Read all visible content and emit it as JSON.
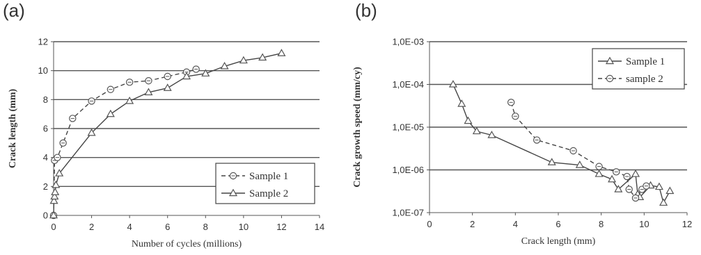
{
  "panels": {
    "a_label": "(a)",
    "b_label": "(b)"
  },
  "chart_data": [
    {
      "type": "line",
      "xlabel": "Number of cycles (millions)",
      "ylabel": "Crack length (mm)",
      "xlim": [
        0,
        14
      ],
      "ylim": [
        0,
        12
      ],
      "xticks": [
        "0",
        "2",
        "4",
        "6",
        "8",
        "10",
        "12",
        "14"
      ],
      "yticks": [
        "0",
        "2",
        "4",
        "6",
        "8",
        "10",
        "12"
      ],
      "xtick_values": [
        0,
        2,
        4,
        6,
        8,
        10,
        12,
        14
      ],
      "ytick_values": [
        0,
        2,
        4,
        6,
        8,
        10,
        12
      ],
      "grid": "horizontal",
      "legend_position": "bottom-right",
      "series": [
        {
          "name": "Sample 1",
          "marker": "circle",
          "line_style": "dashed",
          "x": [
            0,
            0.05,
            0.2,
            0.5,
            1,
            2,
            3,
            4,
            5,
            6,
            7,
            7.5
          ],
          "y": [
            0,
            3.8,
            4.0,
            5.0,
            6.7,
            7.9,
            8.7,
            9.2,
            9.3,
            9.6,
            9.9,
            10.1
          ]
        },
        {
          "name": "Sample 2",
          "marker": "triangle",
          "line_style": "solid",
          "x": [
            0,
            0.02,
            0.05,
            0.08,
            0.12,
            0.3,
            2,
            3,
            4,
            5,
            6,
            7,
            8,
            9,
            10,
            11,
            12
          ],
          "y": [
            0,
            1.0,
            1.3,
            1.6,
            2.1,
            2.9,
            5.7,
            7.0,
            7.9,
            8.5,
            8.8,
            9.6,
            9.8,
            10.3,
            10.7,
            10.9,
            11.2
          ]
        }
      ]
    },
    {
      "type": "line",
      "xlabel": "Crack length (mm)",
      "ylabel": "Crack growth speed (mm/cy)",
      "xlim": [
        0,
        12
      ],
      "ylim": [
        1e-07,
        0.001
      ],
      "yscale": "log",
      "xticks": [
        "0",
        "2",
        "4",
        "6",
        "8",
        "10",
        "12"
      ],
      "yticks": [
        "1,0E-07",
        "1,0E-06",
        "1,0E-05",
        "1,0E-04",
        "1,0E-03"
      ],
      "xtick_values": [
        0,
        2,
        4,
        6,
        8,
        10,
        12
      ],
      "ytick_values": [
        1e-07,
        1e-06,
        1e-05,
        0.0001,
        0.001
      ],
      "grid": "horizontal",
      "legend_position": "top-right",
      "series": [
        {
          "name": "Sample 1",
          "marker": "triangle",
          "line_style": "solid",
          "x": [
            1.1,
            1.5,
            1.8,
            2.2,
            2.9,
            5.7,
            7.0,
            7.9,
            8.5,
            8.8,
            9.6,
            9.7,
            9.8,
            10.3,
            10.7,
            10.9,
            11.2
          ],
          "y": [
            0.0001,
            3.5e-05,
            1.4e-05,
            8e-06,
            6.5e-06,
            1.5e-06,
            1.3e-06,
            8e-07,
            6e-07,
            3.5e-07,
            8e-07,
            2.7e-07,
            2.3e-07,
            4.3e-07,
            4e-07,
            1.7e-07,
            3.2e-07
          ]
        },
        {
          "name": "sample 2",
          "marker": "circle",
          "line_style": "dashed",
          "x": [
            3.8,
            4.0,
            5.0,
            6.7,
            7.9,
            8.7,
            9.2,
            9.3,
            9.6,
            9.9,
            10.1
          ],
          "y": [
            3.8e-05,
            1.8e-05,
            5e-06,
            2.8e-06,
            1.2e-06,
            9e-07,
            7e-07,
            3.5e-07,
            2.2e-07,
            3.5e-07,
            4.2e-07
          ]
        }
      ]
    }
  ]
}
